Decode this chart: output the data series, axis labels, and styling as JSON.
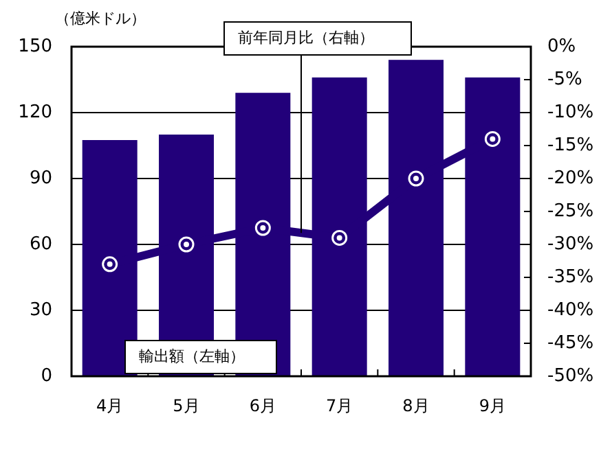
{
  "chart_data": {
    "type": "bar",
    "ylabel": "（億米ドル）",
    "categories": [
      "4月",
      "5月",
      "6月",
      "7月",
      "8月",
      "9月"
    ],
    "series": [
      {
        "name": "輸出額（左軸）",
        "color": "#22007a",
        "values": [
          107.5,
          110,
          129,
          136,
          144,
          136
        ]
      },
      {
        "name": "前年同月比（右軸）",
        "type": "line",
        "axis": "y2",
        "color": "#22007a",
        "marker": "circle",
        "values": [
          -33,
          -30,
          -27.5,
          -29,
          -20,
          -14
        ]
      }
    ],
    "ylim": [
      0,
      150
    ],
    "yticks": [
      0,
      30,
      60,
      90,
      120,
      150
    ],
    "y2lim": [
      -50,
      0
    ],
    "y2ticks": [
      {
        "value": 0,
        "label": "0%"
      },
      {
        "value": -5,
        "label": "-5%"
      },
      {
        "value": -10,
        "label": "-10%"
      },
      {
        "value": -15,
        "label": "-15%"
      },
      {
        "value": -20,
        "label": "-20%"
      },
      {
        "value": -25,
        "label": "-25%"
      },
      {
        "value": -30,
        "label": "-30%"
      },
      {
        "value": -35,
        "label": "-35%"
      },
      {
        "value": -40,
        "label": "-40%"
      },
      {
        "value": -45,
        "label": "-45%"
      },
      {
        "value": -50,
        "label": "-50%"
      }
    ],
    "grid": "y"
  }
}
